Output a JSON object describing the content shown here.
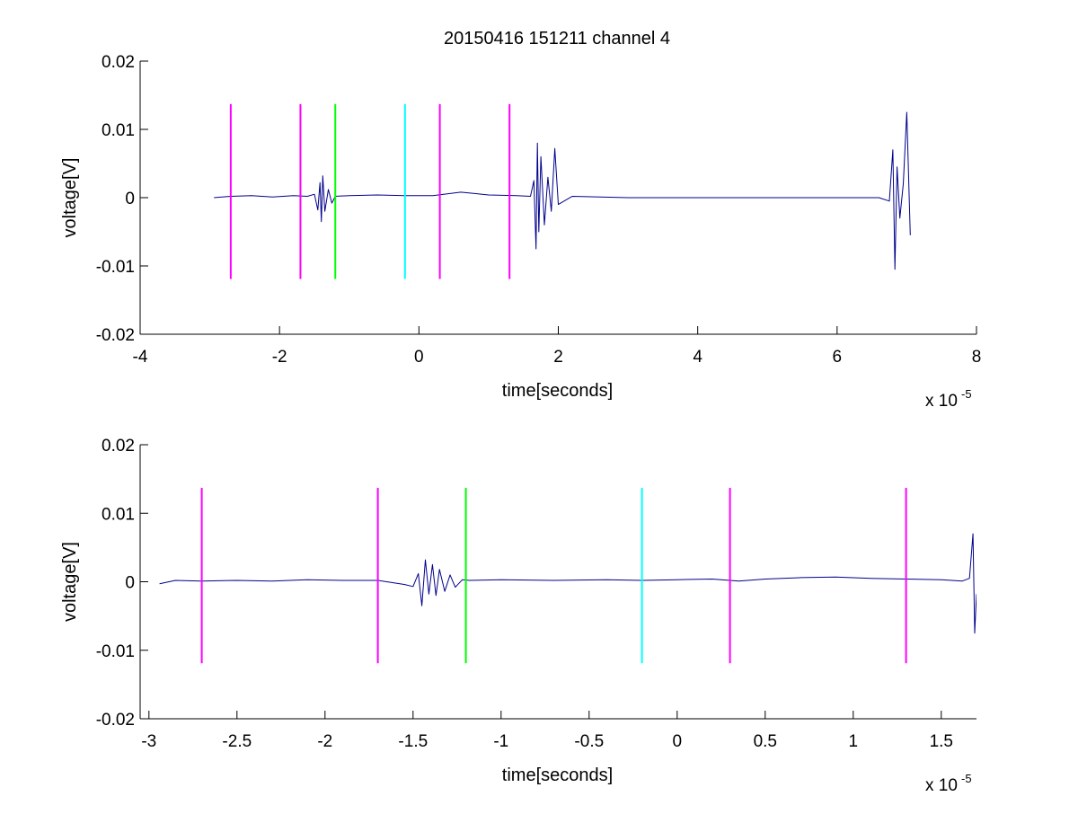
{
  "title": "20150416 151211 channel 4",
  "colors": {
    "trace": "#00008b",
    "magenta": "#ff00ff",
    "green": "#00ff00",
    "cyan": "#00ffff",
    "axes": "#000000"
  },
  "chart_data": [
    {
      "type": "line",
      "title": "20150416 151211 channel 4",
      "xlabel": "time[seconds]",
      "ylabel": "voltage[V]",
      "x_exponent_label": "x 10",
      "x_exponent": "-5",
      "xlim": [
        -4,
        8
      ],
      "ylim": [
        -0.02,
        0.02
      ],
      "xticks": [
        -4,
        -2,
        0,
        2,
        4,
        6,
        8
      ],
      "xtick_labels": [
        "-4",
        "-2",
        "0",
        "2",
        "4",
        "6",
        "8"
      ],
      "yticks": [
        -0.02,
        -0.01,
        0,
        0.01,
        0.02
      ],
      "ytick_labels": [
        "-0.02",
        "-0.01",
        "0",
        "0.01",
        "0.02"
      ],
      "grid": false,
      "series": [
        {
          "color": "#00008b",
          "x": [
            -2.94,
            -2.7,
            -2.4,
            -2.1,
            -1.8,
            -1.6,
            -1.5,
            -1.45,
            -1.42,
            -1.4,
            -1.38,
            -1.35,
            -1.3,
            -1.25,
            -1.2,
            -1.0,
            -0.6,
            -0.2,
            0.2,
            0.6,
            0.8,
            1.0,
            1.4,
            1.6,
            1.65,
            1.68,
            1.7,
            1.72,
            1.75,
            1.8,
            1.85,
            1.9,
            1.95,
            2.0,
            2.2,
            3.0,
            4.0,
            5.0,
            6.0,
            6.6,
            6.75,
            6.8,
            6.83,
            6.86,
            6.9,
            6.95,
            7.0,
            7.05
          ],
          "y": [
            0,
            0.0002,
            0.0003,
            0.0001,
            0.0003,
            0.0002,
            0.0005,
            -0.0018,
            0.0022,
            -0.0035,
            0.0032,
            -0.002,
            0.0012,
            -0.0008,
            0.0002,
            0.0003,
            0.0004,
            0.0003,
            0.0003,
            0.0008,
            0.0006,
            0.0004,
            0.0003,
            0.0002,
            0.0025,
            -0.0075,
            0.008,
            -0.005,
            0.006,
            -0.004,
            0.003,
            -0.002,
            0.0072,
            -0.001,
            0.0002,
            0,
            0,
            0,
            0,
            0,
            -0.0005,
            0.007,
            -0.0105,
            0.0045,
            -0.003,
            0.002,
            0.0125,
            -0.0055
          ]
        }
      ],
      "markers": [
        {
          "x": -2.7,
          "color": "#ff00ff"
        },
        {
          "x": -1.7,
          "color": "#ff00ff"
        },
        {
          "x": -1.2,
          "color": "#00ff00"
        },
        {
          "x": -0.2,
          "color": "#00ffff"
        },
        {
          "x": 0.3,
          "color": "#ff00ff"
        },
        {
          "x": 1.3,
          "color": "#ff00ff"
        }
      ],
      "marker_range": [
        -0.0119,
        0.0137
      ]
    },
    {
      "type": "line",
      "title": "",
      "xlabel": "time[seconds]",
      "ylabel": "voltage[V]",
      "x_exponent_label": "x 10",
      "x_exponent": "-5",
      "xlim": [
        -3.05,
        1.7
      ],
      "ylim": [
        -0.02,
        0.02
      ],
      "xticks": [
        -3,
        -2.5,
        -2,
        -1.5,
        -1,
        -0.5,
        0,
        0.5,
        1,
        1.5
      ],
      "xtick_labels": [
        "-3",
        "-2.5",
        "-2",
        "-1.5",
        "-1",
        "-0.5",
        "0",
        "0.5",
        "1",
        "1.5"
      ],
      "yticks": [
        -0.02,
        -0.01,
        0,
        0.01,
        0.02
      ],
      "ytick_labels": [
        "-0.02",
        "-0.01",
        "0",
        "0.01",
        "0.02"
      ],
      "grid": false,
      "series": [
        {
          "color": "#00008b",
          "x": [
            -2.94,
            -2.85,
            -2.7,
            -2.5,
            -2.3,
            -2.1,
            -1.9,
            -1.7,
            -1.55,
            -1.5,
            -1.47,
            -1.45,
            -1.43,
            -1.41,
            -1.39,
            -1.37,
            -1.35,
            -1.32,
            -1.29,
            -1.26,
            -1.22,
            -1.18,
            -1.0,
            -0.7,
            -0.4,
            -0.2,
            0.0,
            0.2,
            0.35,
            0.5,
            0.7,
            0.9,
            1.1,
            1.3,
            1.5,
            1.62,
            1.66,
            1.68,
            1.69,
            1.7
          ],
          "y": [
            -0.0003,
            0.0002,
            0.0001,
            0.0002,
            0.0001,
            0.0003,
            0.0002,
            0.0002,
            -0.0004,
            -0.0007,
            0.0012,
            -0.0035,
            0.0032,
            -0.0018,
            0.0025,
            -0.002,
            0.0018,
            -0.0014,
            0.001,
            -0.0008,
            0.0003,
            0.0002,
            0.0003,
            0.0002,
            0.0003,
            0.0002,
            0.0003,
            0.0004,
            0.0001,
            0.0004,
            0.0006,
            0.0007,
            0.0005,
            0.0004,
            0.0003,
            0.0001,
            0.0005,
            0.007,
            -0.0075,
            -0.0018
          ]
        }
      ],
      "markers": [
        {
          "x": -2.7,
          "color": "#ff00ff"
        },
        {
          "x": -1.7,
          "color": "#ff00ff"
        },
        {
          "x": -1.2,
          "color": "#00ff00"
        },
        {
          "x": -0.2,
          "color": "#00ffff"
        },
        {
          "x": 0.3,
          "color": "#ff00ff"
        },
        {
          "x": 1.3,
          "color": "#ff00ff"
        }
      ],
      "marker_range": [
        -0.0119,
        0.0137
      ]
    }
  ]
}
